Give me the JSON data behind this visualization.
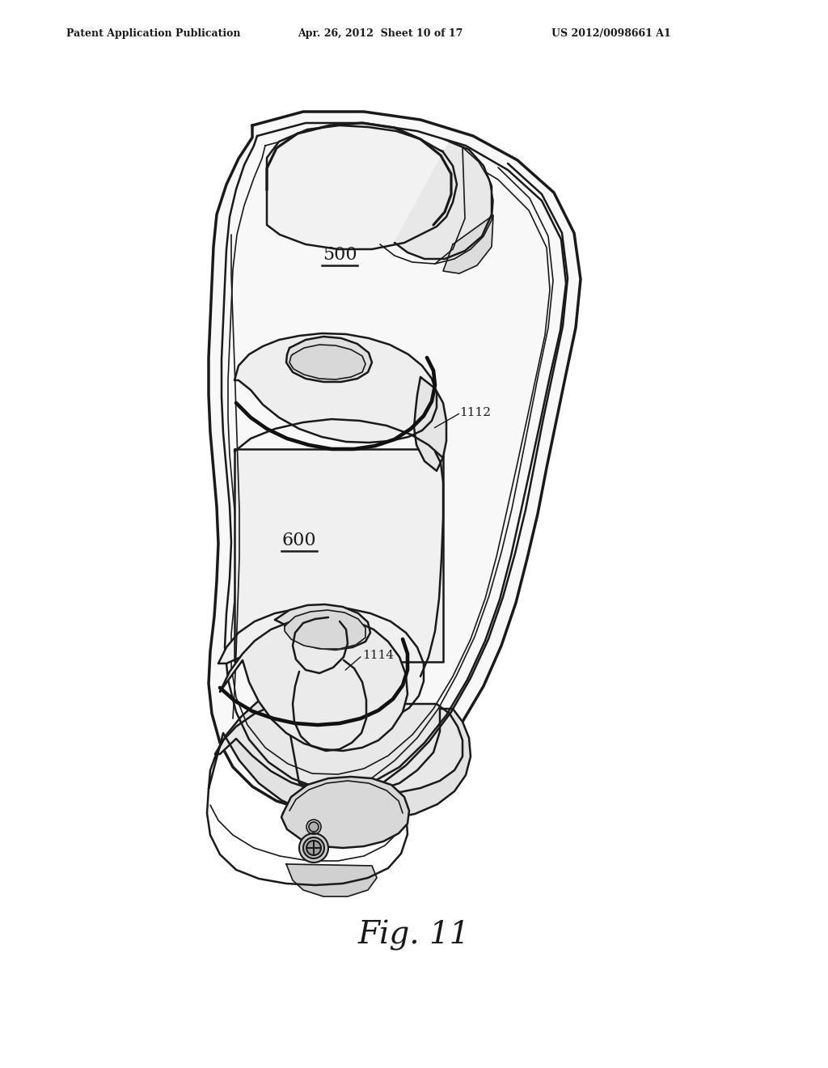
{
  "bg_color": "#ffffff",
  "line_color": "#1a1a1a",
  "header_left": "Patent Application Publication",
  "header_mid": "Apr. 26, 2012  Sheet 10 of 17",
  "header_right": "US 2012/0098661 A1",
  "figure_label": "Fig. 11",
  "label_500": "500",
  "label_600": "600",
  "label_1112": "1112",
  "label_1114": "1114"
}
